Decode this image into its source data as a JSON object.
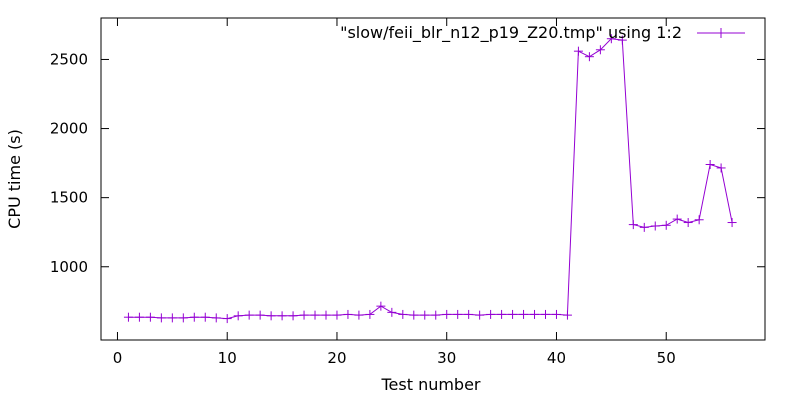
{
  "chart_data": {
    "type": "line",
    "title": "",
    "xlabel": "Test number",
    "ylabel": "CPU time (s)",
    "xlim": [
      -1.5,
      59
    ],
    "ylim": [
      470,
      2800
    ],
    "xticks": [
      0,
      10,
      20,
      30,
      40,
      50
    ],
    "yticks": [
      1000,
      1500,
      2000,
      2500
    ],
    "grid": false,
    "legend_position": "top-right",
    "series": [
      {
        "name": "\"slow/feii_blr_n12_p19_Z20.tmp\" using 1:2",
        "color": "#9400d3",
        "marker": "plus",
        "x": [
          1,
          2,
          3,
          4,
          5,
          6,
          7,
          8,
          9,
          10,
          11,
          12,
          13,
          14,
          15,
          16,
          17,
          18,
          19,
          20,
          21,
          22,
          23,
          24,
          25,
          26,
          27,
          28,
          29,
          30,
          31,
          32,
          33,
          34,
          35,
          36,
          37,
          38,
          39,
          40,
          41,
          42,
          43,
          44,
          45,
          46,
          47,
          48,
          49,
          50,
          51,
          52,
          53,
          54,
          55,
          56
        ],
        "y": [
          635,
          635,
          635,
          630,
          630,
          630,
          635,
          635,
          630,
          625,
          645,
          650,
          650,
          645,
          645,
          645,
          650,
          650,
          650,
          650,
          655,
          650,
          655,
          715,
          670,
          655,
          650,
          650,
          650,
          655,
          655,
          655,
          650,
          655,
          655,
          655,
          655,
          655,
          655,
          655,
          650,
          2560,
          2520,
          2570,
          2650,
          2640,
          1305,
          1285,
          1295,
          1300,
          1345,
          1320,
          1340,
          1740,
          1715,
          1320
        ]
      }
    ]
  }
}
